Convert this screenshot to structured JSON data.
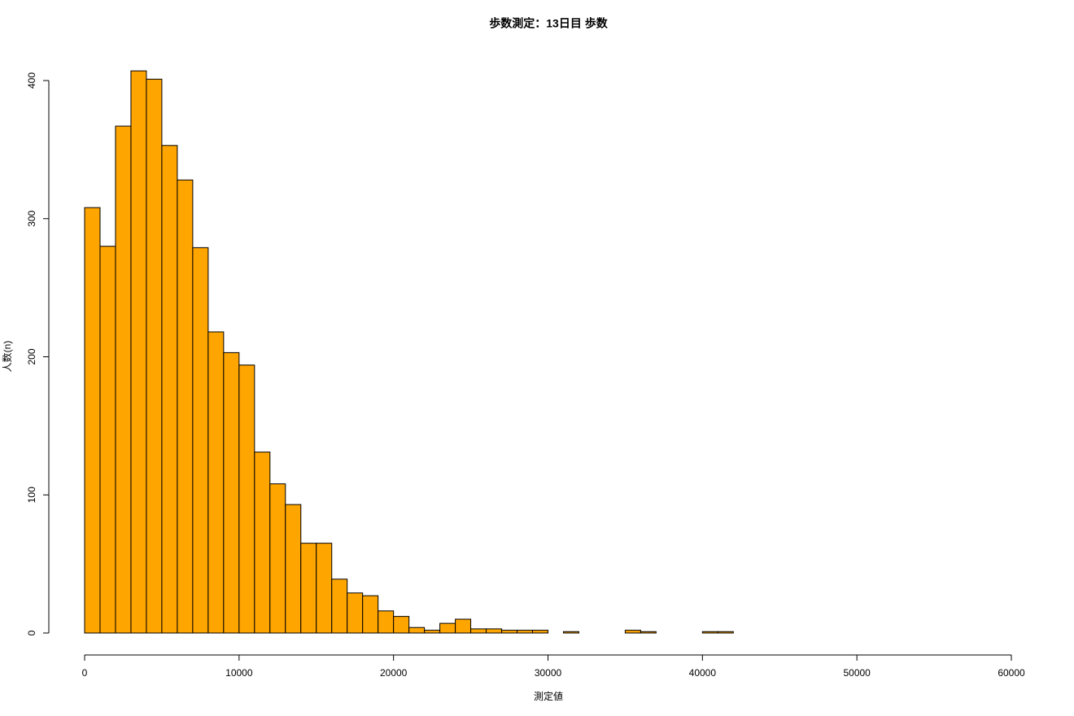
{
  "chart_data": {
    "type": "histogram",
    "title": "歩数測定：13日目 歩数",
    "x_label": "測定値",
    "y_label": "人数(n)",
    "bins": [
      0,
      1000,
      2000,
      3000,
      4000,
      5000,
      6000,
      7000,
      8000,
      9000,
      10000,
      11000,
      12000,
      13000,
      14000,
      15000,
      16000,
      17000,
      18000,
      19000,
      20000,
      21000,
      22000,
      23000,
      24000,
      25000,
      26000,
      27000,
      28000,
      29000,
      30000,
      31000,
      32000,
      33000,
      34000,
      35000,
      36000,
      37000,
      38000,
      39000,
      40000,
      41000,
      42000
    ],
    "values": [
      308,
      280,
      367,
      407,
      401,
      353,
      328,
      279,
      218,
      203,
      194,
      131,
      108,
      93,
      65,
      65,
      39,
      29,
      27,
      16,
      12,
      4,
      2,
      7,
      10,
      3,
      3,
      2,
      2,
      2,
      0,
      1,
      0,
      0,
      0,
      2,
      1,
      0,
      0,
      0,
      1,
      1
    ],
    "color": "#ffa500",
    "xlim": [
      0,
      60000
    ],
    "xticks": [
      0,
      10000,
      20000,
      30000,
      40000,
      50000,
      60000
    ],
    "ylim": [
      0,
      400
    ],
    "yticks": [
      0,
      100,
      200,
      300,
      400
    ]
  }
}
